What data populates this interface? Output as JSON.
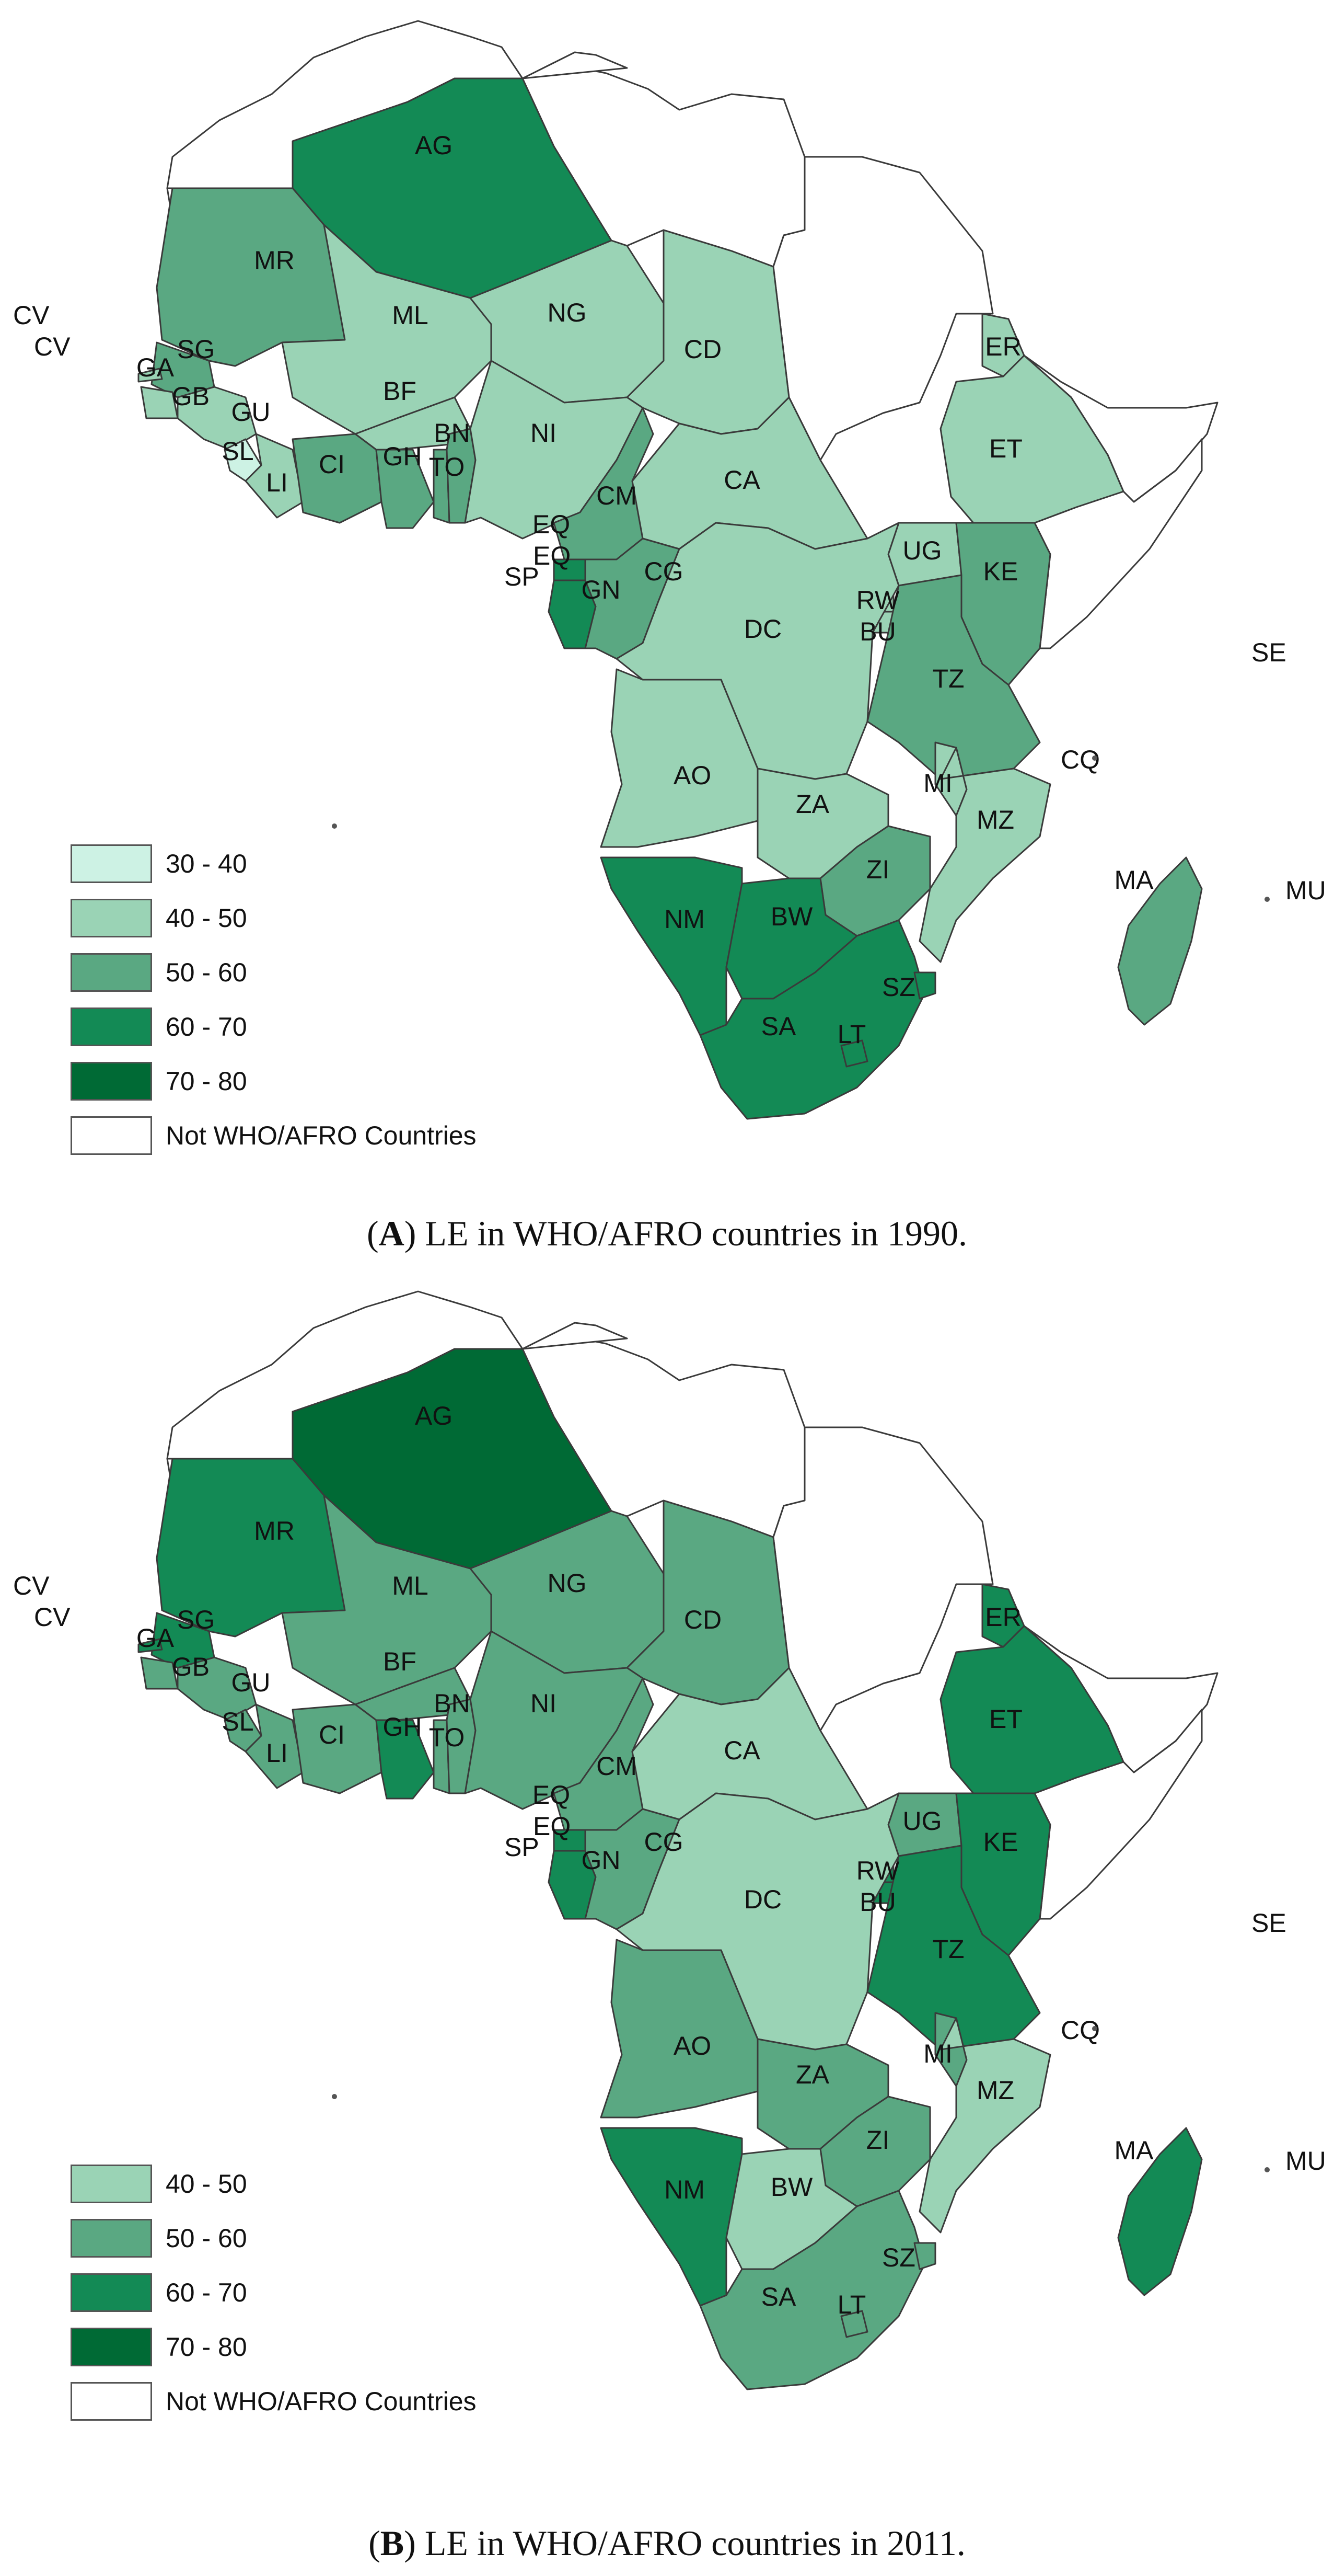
{
  "colors": {
    "c30_40": "#cdf2e4",
    "c40_50": "#9ad3b5",
    "c50_60": "#5aa882",
    "c60_70": "#138a55",
    "c70_80": "#006a35",
    "not_afro": "#ffffff"
  },
  "panels": [
    {
      "panel_letter": "A",
      "caption_text": "LE in WHO/AFRO countries in 1990.",
      "legend": [
        {
          "label": "30 - 40",
          "color": "#cdf2e4"
        },
        {
          "label": "40 - 50",
          "color": "#9ad3b5"
        },
        {
          "label": "50 - 60",
          "color": "#5aa882"
        },
        {
          "label": "60 - 70",
          "color": "#138a55"
        },
        {
          "label": "70 - 80",
          "color": "#006a35"
        },
        {
          "label": "Not WHO/AFRO Countries",
          "color": "#ffffff"
        }
      ],
      "countries": {
        "AG": "60 - 70",
        "MR": "50 - 60",
        "ML": "40 - 50",
        "NG": "40 - 50",
        "CD": "40 - 50",
        "ER": "40 - 50",
        "ET": "40 - 50",
        "SG": "50 - 60",
        "GA": "40 - 50",
        "GB": "40 - 50",
        "GU": "40 - 50",
        "SL": "30 - 40",
        "LI": "40 - 50",
        "CI": "50 - 60",
        "BF": "40 - 50",
        "GH": "50 - 60",
        "TO": "50 - 60",
        "BN": "50 - 60",
        "NI": "40 - 50",
        "CM": "50 - 60",
        "CA": "40 - 50",
        "EQ": "60 - 70",
        "GN": "60 - 70",
        "CG": "50 - 60",
        "UG": "40 - 50",
        "KE": "50 - 60",
        "RW": "40 - 50",
        "BU": "40 - 50",
        "DC": "40 - 50",
        "TZ": "50 - 60",
        "AO": "40 - 50",
        "ZA": "40 - 50",
        "MI": "40 - 50",
        "MZ": "40 - 50",
        "ZI": "50 - 60",
        "NM": "60 - 70",
        "BW": "60 - 70",
        "SA": "60 - 70",
        "SZ": "60 - 70",
        "LT": "60 - 70",
        "MA": "50 - 60"
      }
    },
    {
      "panel_letter": "B",
      "caption_text": "LE in WHO/AFRO countries in 2011.",
      "legend": [
        {
          "label": "40 - 50",
          "color": "#9ad3b5"
        },
        {
          "label": "50 - 60",
          "color": "#5aa882"
        },
        {
          "label": "60 - 70",
          "color": "#138a55"
        },
        {
          "label": "70 - 80",
          "color": "#006a35"
        },
        {
          "label": "Not WHO/AFRO Countries",
          "color": "#ffffff"
        }
      ],
      "countries": {
        "AG": "70 - 80",
        "MR": "60 - 70",
        "ML": "50 - 60",
        "NG": "50 - 60",
        "CD": "50 - 60",
        "ER": "60 - 70",
        "ET": "60 - 70",
        "SG": "60 - 70",
        "GA": "60 - 70",
        "GB": "50 - 60",
        "GU": "50 - 60",
        "SL": "50 - 60",
        "LI": "50 - 60",
        "CI": "50 - 60",
        "BF": "50 - 60",
        "GH": "60 - 70",
        "TO": "50 - 60",
        "BN": "50 - 60",
        "NI": "50 - 60",
        "CM": "50 - 60",
        "CA": "40 - 50",
        "EQ": "60 - 70",
        "GN": "60 - 70",
        "CG": "50 - 60",
        "UG": "50 - 60",
        "KE": "60 - 70",
        "RW": "60 - 70",
        "BU": "60 - 70",
        "DC": "40 - 50",
        "TZ": "60 - 70",
        "AO": "50 - 60",
        "ZA": "50 - 60",
        "MI": "50 - 60",
        "MZ": "40 - 50",
        "ZI": "50 - 60",
        "NM": "60 - 70",
        "BW": "40 - 50",
        "SA": "50 - 60",
        "SZ": "50 - 60",
        "LT": "50 - 60",
        "MA": "60 - 70"
      }
    }
  ]
}
